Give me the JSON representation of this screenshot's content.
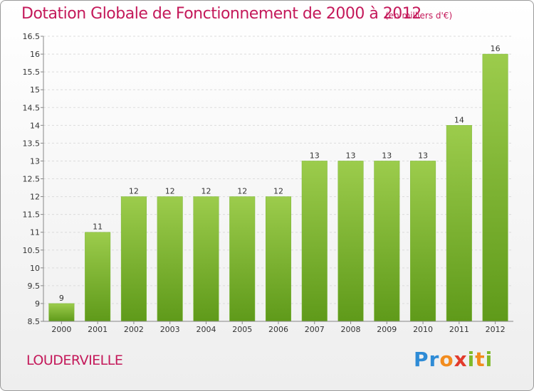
{
  "header": {
    "title": "Dotation Globale de Fonctionnement de 2000 à 2012",
    "subtitle": "(en milliers d'€)"
  },
  "footer": {
    "place": "LOUDERVIELLE",
    "logo_letters": [
      "P",
      "r",
      "o",
      "x",
      "i",
      "t",
      "i"
    ],
    "logo_colors": [
      "#2e8bd6",
      "#2e8bd6",
      "#f28c1e",
      "#e23b2c",
      "#7fba2a",
      "#f28c1e",
      "#7fba2a"
    ]
  },
  "colors": {
    "bar_top": "#9ccc4c",
    "bar_bottom": "#5f9a1a",
    "title": "#c4195a"
  },
  "chart_data": {
    "type": "bar",
    "title": "Dotation Globale de Fonctionnement de 2000 à 2012",
    "subtitle": "(en milliers d'€)",
    "categories": [
      "2000",
      "2001",
      "2002",
      "2003",
      "2004",
      "2005",
      "2006",
      "2007",
      "2008",
      "2009",
      "2010",
      "2011",
      "2012"
    ],
    "values": [
      9,
      11,
      12,
      12,
      12,
      12,
      12,
      13,
      13,
      13,
      13,
      14,
      16
    ],
    "data_labels": [
      "9",
      "11",
      "12",
      "12",
      "12",
      "12",
      "12",
      "13",
      "13",
      "13",
      "13",
      "14",
      "16"
    ],
    "ylim": [
      8.5,
      16.5
    ],
    "yticks": [
      "8.5",
      "9",
      "9.5",
      "10",
      "10.5",
      "11",
      "11.5",
      "12",
      "12.5",
      "13",
      "13.5",
      "14",
      "14.5",
      "15",
      "15.5",
      "16",
      "16.5"
    ],
    "xlabel": "",
    "ylabel": "",
    "grid": true
  }
}
